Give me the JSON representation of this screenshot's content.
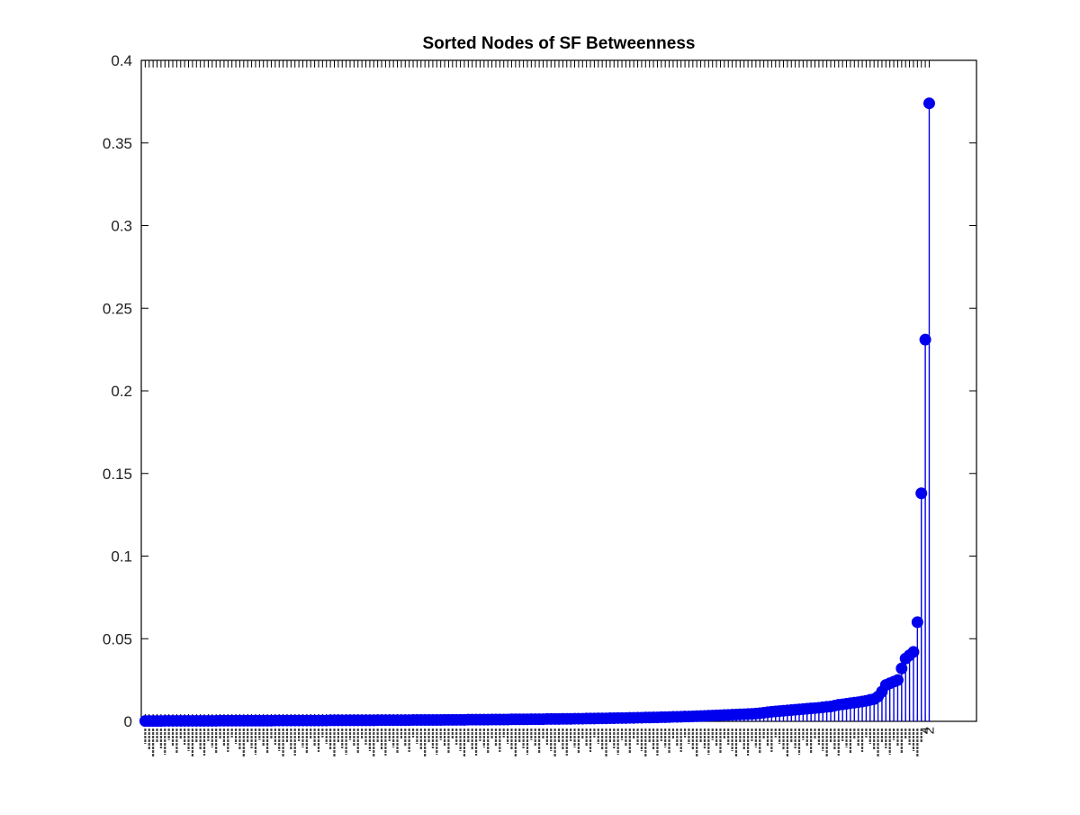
{
  "chart_data": {
    "type": "stem",
    "title": "Sorted Nodes of SF Betweenness",
    "xlabel": "",
    "ylabel": "",
    "ylim": [
      0,
      0.4
    ],
    "yticks": [
      0,
      0.05,
      0.1,
      0.15,
      0.2,
      0.25,
      0.3,
      0.35,
      0.4
    ],
    "ytick_labels": [
      "0",
      "0.05",
      "0.1",
      "0.15",
      "0.2",
      "0.25",
      "0.3",
      "0.35",
      "0.4"
    ],
    "n_points": 200,
    "x": "sorted node rank 1..200 (tick labels are overlapping node IDs)",
    "tail_labels": [
      "4",
      "2"
    ],
    "values": [
      0.0002,
      0.0002,
      0.0002,
      0.0002,
      0.0002,
      0.0003,
      0.0003,
      0.0003,
      0.0003,
      0.0003,
      0.0003,
      0.0003,
      0.0003,
      0.0003,
      0.0003,
      0.0003,
      0.0003,
      0.0003,
      0.0003,
      0.0004,
      0.0004,
      0.0004,
      0.0004,
      0.0004,
      0.0004,
      0.0004,
      0.0004,
      0.0004,
      0.0004,
      0.0004,
      0.0004,
      0.0004,
      0.0004,
      0.0005,
      0.0005,
      0.0005,
      0.0005,
      0.0005,
      0.0005,
      0.0005,
      0.0005,
      0.0005,
      0.0005,
      0.0005,
      0.0005,
      0.0005,
      0.0005,
      0.0006,
      0.0006,
      0.0006,
      0.0006,
      0.0006,
      0.0006,
      0.0006,
      0.0006,
      0.0006,
      0.0006,
      0.0006,
      0.0006,
      0.0007,
      0.0007,
      0.0007,
      0.0007,
      0.0007,
      0.0007,
      0.0007,
      0.0007,
      0.0007,
      0.0008,
      0.0008,
      0.0008,
      0.0008,
      0.0008,
      0.0008,
      0.0008,
      0.0008,
      0.0009,
      0.0009,
      0.0009,
      0.0009,
      0.0009,
      0.0009,
      0.001,
      0.001,
      0.001,
      0.001,
      0.001,
      0.001,
      0.0011,
      0.0011,
      0.0011,
      0.0011,
      0.0011,
      0.0012,
      0.0012,
      0.0012,
      0.0012,
      0.0012,
      0.0013,
      0.0013,
      0.0013,
      0.0013,
      0.0014,
      0.0014,
      0.0014,
      0.0014,
      0.0015,
      0.0015,
      0.0015,
      0.0016,
      0.0016,
      0.0016,
      0.0017,
      0.0017,
      0.0017,
      0.0018,
      0.0018,
      0.0018,
      0.0019,
      0.0019,
      0.002,
      0.002,
      0.002,
      0.0021,
      0.0021,
      0.0022,
      0.0022,
      0.0023,
      0.0023,
      0.0024,
      0.0024,
      0.0025,
      0.0025,
      0.0026,
      0.0027,
      0.0027,
      0.0028,
      0.0029,
      0.0029,
      0.003,
      0.0031,
      0.0032,
      0.0033,
      0.0034,
      0.0035,
      0.0036,
      0.0037,
      0.0038,
      0.0039,
      0.004,
      0.0041,
      0.0042,
      0.0043,
      0.0044,
      0.0045,
      0.0047,
      0.0049,
      0.0052,
      0.0055,
      0.0058,
      0.006,
      0.0062,
      0.0064,
      0.0066,
      0.0068,
      0.007,
      0.0072,
      0.0074,
      0.0076,
      0.0078,
      0.008,
      0.0082,
      0.0085,
      0.0088,
      0.009,
      0.0095,
      0.01,
      0.0103,
      0.0106,
      0.011,
      0.0113,
      0.0116,
      0.012,
      0.0124,
      0.013,
      0.0135,
      0.015,
      0.018,
      0.022,
      0.023,
      0.024,
      0.025,
      0.032,
      0.038,
      0.04,
      0.042,
      0.06,
      0.138,
      0.231,
      0.374
    ]
  }
}
